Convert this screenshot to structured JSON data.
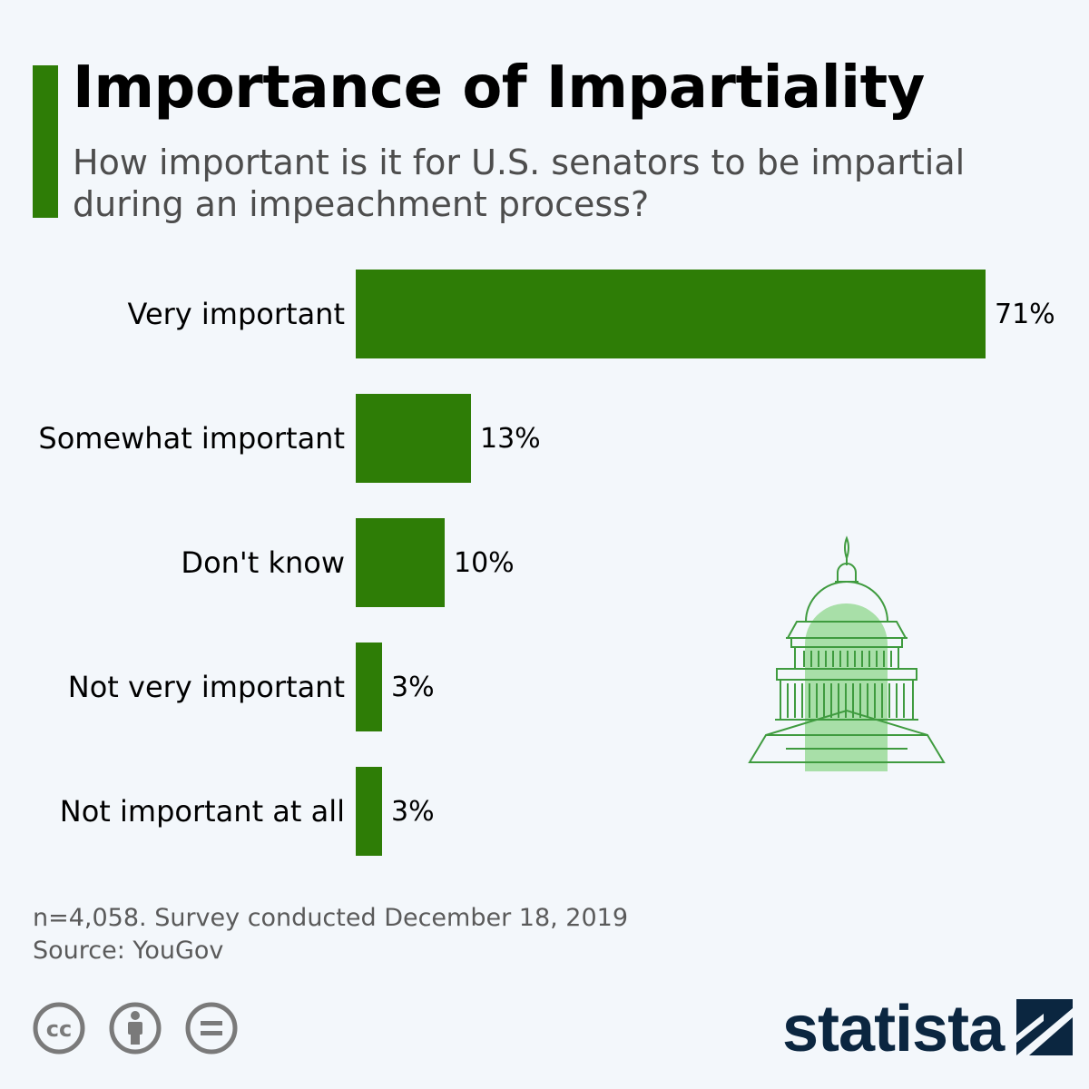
{
  "header": {
    "title": "Importance of Impartiality",
    "subtitle": "How important is it for U.S. senators to be impartial during an impeachment process?"
  },
  "chart_data": {
    "type": "bar",
    "orientation": "horizontal",
    "categories": [
      "Very important",
      "Somewhat important",
      "Don't know",
      "Not very important",
      "Not important at all"
    ],
    "values": [
      71,
      13,
      10,
      3,
      3
    ],
    "value_labels": [
      "71%",
      "13%",
      "10%",
      "3%",
      "3%"
    ],
    "unit": "%",
    "xlim": [
      0,
      71
    ],
    "bar_color": "#2e7d06",
    "title": "Importance of Impartiality",
    "subtitle": "How important is it for U.S. senators to be impartial during an impeachment process?"
  },
  "footer": {
    "note": "n=4,058. Survey conducted December 18, 2019",
    "source": "Source: YouGov",
    "brand": "statista"
  },
  "icons": {
    "illustration": "capitol-building-icon",
    "license": [
      "cc-icon",
      "attribution-icon",
      "no-derivatives-icon"
    ],
    "logo": "statista-logo-icon"
  },
  "colors": {
    "accent": "#2e7d06",
    "capitol_fill": "#a8dfa8",
    "brand": "#0b2640"
  }
}
